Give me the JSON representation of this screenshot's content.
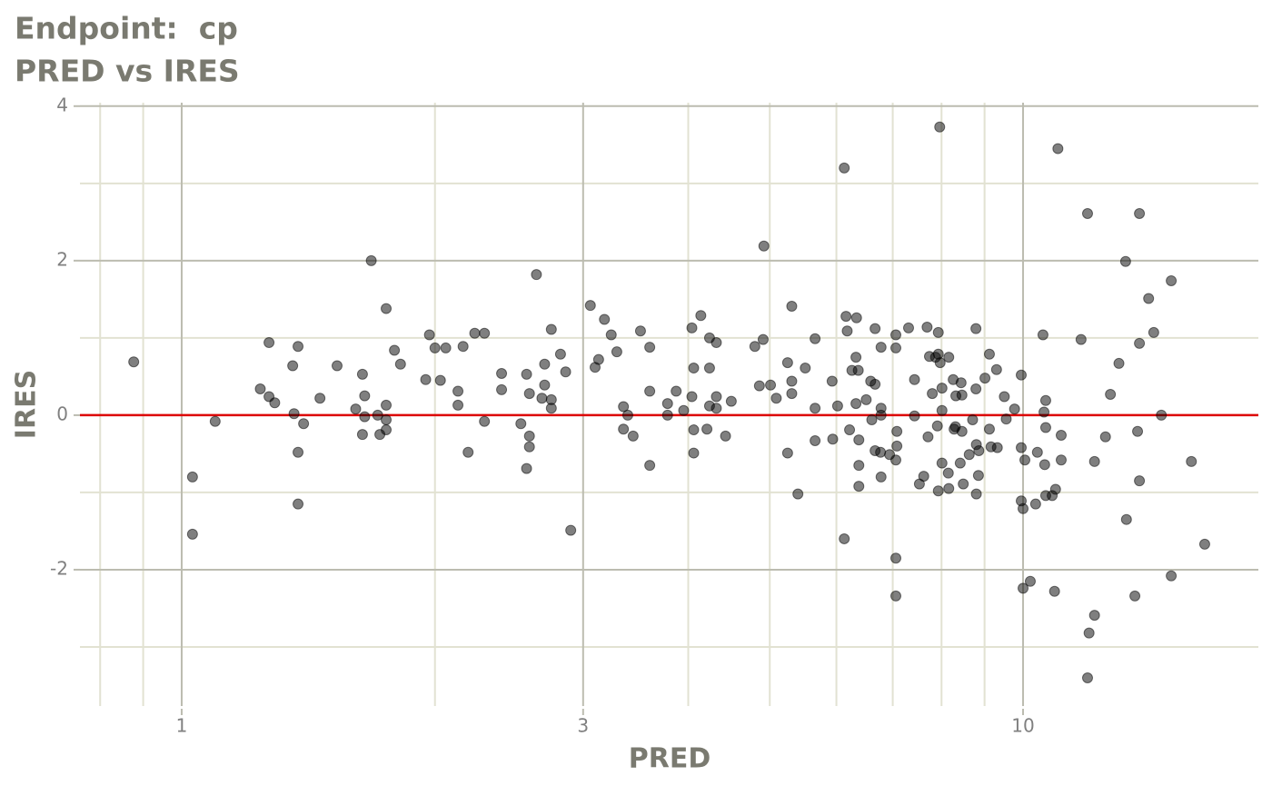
{
  "chart_data": {
    "type": "scatter",
    "title": "Endpoint:  cp",
    "subtitle": "PRED vs IRES",
    "x_label": "PRED",
    "y_label": "IRES",
    "xscale": "log",
    "grid": true,
    "xlim": [
      0.757,
      19.04
    ],
    "ylim": [
      -3.8,
      4.08
    ],
    "xticks": [
      1,
      3,
      10
    ],
    "yticks": [
      -2,
      0,
      2,
      4
    ],
    "minor_xticks": [
      0.8,
      0.9,
      2,
      4,
      5,
      6,
      7,
      8,
      9
    ],
    "minor_yticks": [
      -3,
      -1,
      1,
      3
    ],
    "hline": 0,
    "hline_color": "#dd0000",
    "color": "#000000",
    "opacity": 0.5,
    "x": [
      0.877,
      1.03,
      1.03,
      1.096,
      1.24,
      1.27,
      1.27,
      1.29,
      1.355,
      1.36,
      1.375,
      1.375,
      1.375,
      1.396,
      1.46,
      1.53,
      1.61,
      1.64,
      1.64,
      1.65,
      1.65,
      1.68,
      1.71,
      1.72,
      1.75,
      1.75,
      1.75,
      1.75,
      1.79,
      1.82,
      1.95,
      1.97,
      2.0,
      2.03,
      2.06,
      2.13,
      2.13,
      2.16,
      2.19,
      2.23,
      2.29,
      2.29,
      2.4,
      2.4,
      2.53,
      2.57,
      2.57,
      2.59,
      2.59,
      2.59,
      2.64,
      2.68,
      2.7,
      2.7,
      2.75,
      2.75,
      2.75,
      2.82,
      2.86,
      2.9,
      3.06,
      3.1,
      3.13,
      3.18,
      3.24,
      3.29,
      3.35,
      3.35,
      3.39,
      3.44,
      3.51,
      3.6,
      3.6,
      3.6,
      3.78,
      3.78,
      3.87,
      3.95,
      4.04,
      4.04,
      4.06,
      4.06,
      4.06,
      4.14,
      4.21,
      4.24,
      4.24,
      4.24,
      4.32,
      4.32,
      4.32,
      4.43,
      4.5,
      4.8,
      4.86,
      4.91,
      4.92,
      5.01,
      5.09,
      5.25,
      5.25,
      5.31,
      5.31,
      5.31,
      5.4,
      5.51,
      5.66,
      5.66,
      5.66,
      5.93,
      5.94,
      6.02,
      6.13,
      6.13,
      6.16,
      6.18,
      6.22,
      6.26,
      6.33,
      6.33,
      6.34,
      6.37,
      6.38,
      6.38,
      6.38,
      6.51,
      6.59,
      6.61,
      6.67,
      6.67,
      6.67,
      6.77,
      6.78,
      6.78,
      6.78,
      6.78,
      6.94,
      7.06,
      7.06,
      7.06,
      7.08,
      7.08,
      7.06,
      7.06,
      7.31,
      7.43,
      7.43,
      7.53,
      7.62,
      7.69,
      7.71,
      7.74,
      7.8,
      7.87,
      7.91,
      7.93,
      7.93,
      7.93,
      7.96,
      7.97,
      8.01,
      8.01,
      8.01,
      8.15,
      8.16,
      8.16,
      8.26,
      8.28,
      8.31,
      8.32,
      8.42,
      8.44,
      8.46,
      8.46,
      8.49,
      8.63,
      8.71,
      8.79,
      8.79,
      8.8,
      8.8,
      8.85,
      8.86,
      9.01,
      9.12,
      9.12,
      9.16,
      9.3,
      9.32,
      9.5,
      9.55,
      9.77,
      9.95,
      9.95,
      9.95,
      10.0,
      10.0,
      10.05,
      10.2,
      10.35,
      10.4,
      10.56,
      10.59,
      10.61,
      10.64,
      10.64,
      10.64,
      10.83,
      10.9,
      10.93,
      11.0,
      11.1,
      11.1,
      11.72,
      11.93,
      11.93,
      11.98,
      12.16,
      12.16,
      12.53,
      12.7,
      13.0,
      13.24,
      13.27,
      13.58,
      13.68,
      13.75,
      13.75,
      13.75,
      14.1,
      14.3,
      14.6,
      15.0,
      15.0,
      15.85,
      16.44
    ],
    "values": [
      0.69,
      -0.8,
      -1.54,
      -0.08,
      0.34,
      0.94,
      0.24,
      0.16,
      0.64,
      0.02,
      0.89,
      -0.48,
      -1.15,
      -0.11,
      0.22,
      0.64,
      0.08,
      0.53,
      -0.25,
      0.25,
      -0.02,
      2.0,
      0.0,
      -0.25,
      1.38,
      0.13,
      -0.06,
      -0.19,
      0.84,
      0.66,
      0.46,
      1.04,
      0.87,
      0.45,
      0.87,
      0.31,
      0.13,
      0.89,
      -0.48,
      1.06,
      1.06,
      -0.08,
      0.54,
      0.33,
      -0.11,
      0.53,
      -0.69,
      0.28,
      -0.27,
      -0.41,
      1.82,
      0.22,
      0.66,
      0.39,
      1.11,
      0.2,
      0.09,
      0.79,
      0.56,
      -1.49,
      1.42,
      0.62,
      0.72,
      1.24,
      1.04,
      0.82,
      0.11,
      -0.18,
      0.0,
      -0.27,
      1.09,
      0.88,
      0.31,
      -0.65,
      0.15,
      0.0,
      0.31,
      0.06,
      1.13,
      0.24,
      0.61,
      -0.19,
      -0.49,
      1.29,
      -0.18,
      0.61,
      0.12,
      1.0,
      0.94,
      0.24,
      0.09,
      -0.27,
      0.18,
      0.89,
      0.38,
      0.98,
      2.19,
      0.39,
      0.22,
      -0.49,
      0.68,
      1.41,
      0.44,
      0.28,
      -1.02,
      0.61,
      0.99,
      0.09,
      -0.33,
      0.44,
      -0.31,
      0.12,
      -1.6,
      3.2,
      1.28,
      1.09,
      -0.19,
      0.58,
      0.75,
      0.15,
      1.26,
      0.58,
      -0.32,
      -0.65,
      -0.92,
      0.2,
      0.44,
      -0.06,
      1.12,
      0.4,
      -0.46,
      -0.48,
      0.88,
      0.09,
      0.0,
      -0.8,
      -0.51,
      -0.58,
      1.04,
      0.87,
      -0.21,
      -0.4,
      -1.85,
      -2.34,
      1.13,
      0.46,
      -0.01,
      -0.89,
      -0.79,
      1.14,
      -0.28,
      0.76,
      0.28,
      0.75,
      -0.14,
      0.79,
      1.07,
      -0.98,
      3.73,
      0.68,
      0.35,
      0.06,
      -0.62,
      -0.75,
      0.75,
      -0.95,
      0.46,
      -0.18,
      -0.15,
      0.25,
      -0.62,
      0.42,
      0.26,
      -0.21,
      -0.89,
      -0.51,
      -0.06,
      1.12,
      0.34,
      -0.38,
      -1.02,
      -0.78,
      -0.46,
      0.48,
      0.79,
      -0.18,
      -0.41,
      0.59,
      -0.42,
      0.24,
      -0.05,
      0.08,
      0.52,
      -1.11,
      -0.42,
      -2.24,
      -1.21,
      -0.58,
      -2.15,
      -1.15,
      -0.48,
      1.04,
      0.04,
      -0.64,
      0.19,
      -0.16,
      -1.04,
      -1.04,
      -2.28,
      -0.96,
      3.45,
      -0.58,
      -0.26,
      0.98,
      2.61,
      -3.4,
      -2.82,
      -2.59,
      -0.6,
      -0.28,
      0.27,
      0.67,
      1.99,
      -1.35,
      -2.34,
      -0.21,
      0.93,
      2.61,
      -0.85,
      1.51,
      1.07,
      0.0,
      1.74,
      -2.08,
      -0.6,
      -1.67
    ]
  }
}
